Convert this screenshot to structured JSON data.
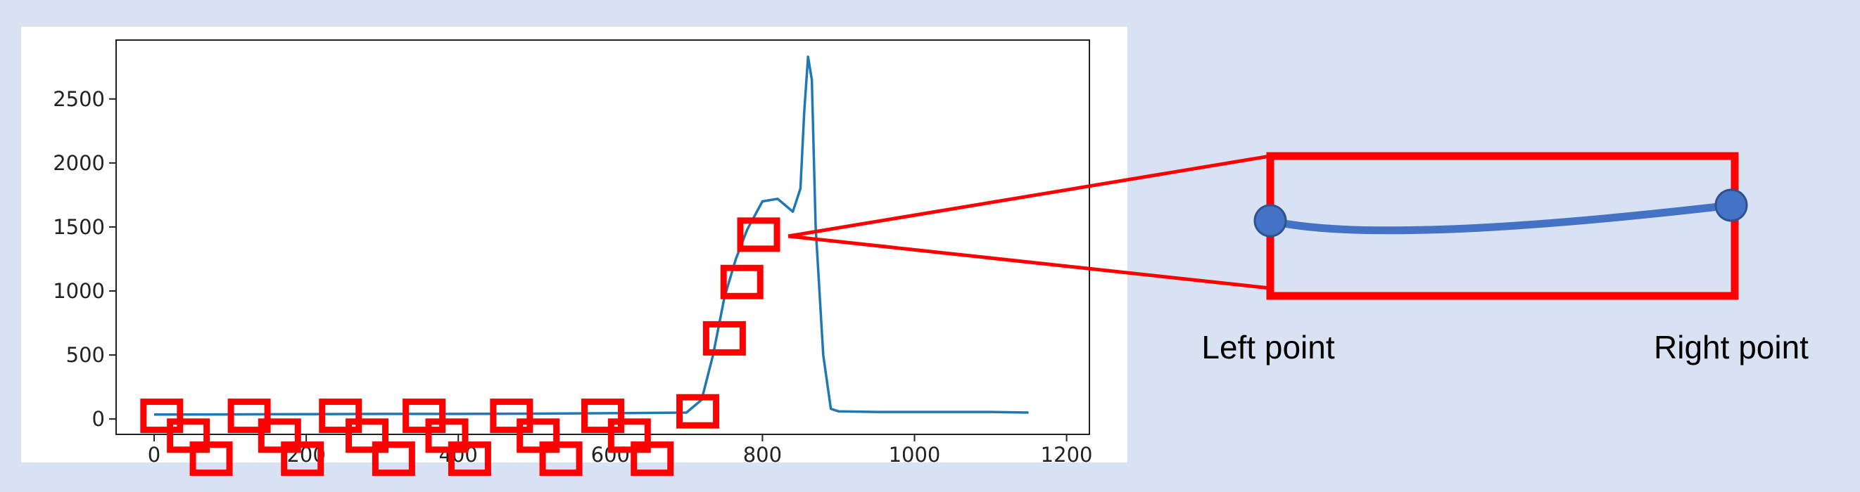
{
  "chart_data": {
    "type": "line",
    "title": "",
    "xlabel": "",
    "ylabel": "",
    "xlim": [
      -50,
      1230
    ],
    "ylim": [
      -120,
      2960
    ],
    "x_ticks": [
      0,
      200,
      400,
      600,
      800,
      1000,
      1200
    ],
    "x_tick_labels": [
      "0",
      "200",
      "400",
      "600",
      "800",
      "1000",
      "1200"
    ],
    "y_ticks": [
      0,
      500,
      1000,
      1500,
      2000,
      2500
    ],
    "y_tick_labels": [
      "0",
      "500",
      "1000",
      "1500",
      "2000",
      "2500"
    ],
    "grid": false,
    "series": [
      {
        "color": "#1f77b4",
        "x": [
          0,
          100,
          200,
          300,
          400,
          500,
          600,
          700,
          720,
          735,
          750,
          765,
          780,
          800,
          820,
          840,
          850,
          855,
          860,
          865,
          870,
          880,
          890,
          900,
          950,
          1000,
          1050,
          1100,
          1150
        ],
        "y": [
          35,
          36,
          38,
          40,
          40,
          42,
          45,
          50,
          150,
          500,
          950,
          1250,
          1480,
          1700,
          1720,
          1620,
          1800,
          2400,
          2830,
          2650,
          1500,
          500,
          80,
          60,
          55,
          55,
          55,
          55,
          50
        ]
      }
    ],
    "windows": [
      {
        "x": 10,
        "y": 25
      },
      {
        "x": 45,
        "y": -130
      },
      {
        "x": 75,
        "y": -310
      },
      {
        "x": 125,
        "y": 25
      },
      {
        "x": 165,
        "y": -130
      },
      {
        "x": 195,
        "y": -310
      },
      {
        "x": 245,
        "y": 25
      },
      {
        "x": 280,
        "y": -130
      },
      {
        "x": 315,
        "y": -310
      },
      {
        "x": 355,
        "y": 25
      },
      {
        "x": 385,
        "y": -130
      },
      {
        "x": 415,
        "y": -310
      },
      {
        "x": 470,
        "y": 25
      },
      {
        "x": 505,
        "y": -130
      },
      {
        "x": 535,
        "y": -310
      },
      {
        "x": 590,
        "y": 25
      },
      {
        "x": 625,
        "y": -130
      },
      {
        "x": 655,
        "y": -310
      },
      {
        "x": 715,
        "y": 60
      },
      {
        "x": 750,
        "y": 630
      },
      {
        "x": 773,
        "y": 1070
      },
      {
        "x": 795,
        "y": 1440
      }
    ],
    "highlight_window_index": 21,
    "colors": {
      "line": "#1f77b4",
      "window": "#ff0000",
      "background": "#d9e2f3",
      "plot": "#ffffff"
    }
  },
  "zoom_panel": {
    "left_label": "Left point",
    "right_label": "Right point",
    "curve_color": "#4472c4",
    "point_fill": "#4472c4",
    "point_stroke": "#2f528f",
    "box_color": "#ff0000"
  }
}
